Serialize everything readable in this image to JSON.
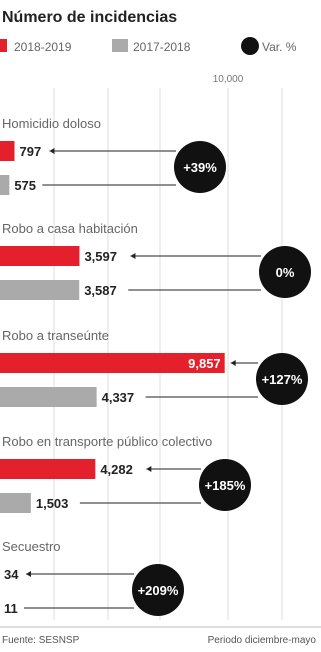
{
  "chart_data": {
    "type": "bar",
    "title": "Número de incidencias",
    "legend": [
      {
        "name": "2018-2019",
        "color": "#e3202b",
        "shape": "square"
      },
      {
        "name": "2017-2018",
        "color": "#aaaaaa",
        "shape": "square"
      },
      {
        "name": "Var. %",
        "color": "#111111",
        "shape": "circle"
      }
    ],
    "axis_tick_label": "10,000",
    "axis_tick_value": 10000,
    "categories": [
      {
        "label": "Homicidio doloso",
        "v2019": 797,
        "v2018": 575,
        "v2019_label": "797",
        "v2018_label": "575",
        "var": "+39%"
      },
      {
        "label": "Robo a casa habitación",
        "v2019": 3597,
        "v2018": 3587,
        "v2019_label": "3,597",
        "v2018_label": "3,587",
        "var": "0%"
      },
      {
        "label": "Robo a transeúnte",
        "v2019": 9857,
        "v2018": 4337,
        "v2019_label": "9,857",
        "v2018_label": "4,337",
        "var": "+127%"
      },
      {
        "label": "Robo en transporte público colectivo",
        "v2019": 4282,
        "v2018": 1503,
        "v2019_label": "4,282",
        "v2018_label": "1,503",
        "var": "+185%"
      },
      {
        "label": "Secuestro",
        "v2019": 34,
        "v2018": 11,
        "v2019_label": "34",
        "v2018_label": "11",
        "var": "+209%"
      }
    ],
    "colors": {
      "current": "#e3202b",
      "previous": "#aaaaaa",
      "circle": "#111111"
    }
  },
  "footer": {
    "source": "Fuente: SESNSP",
    "period": "Periodo diciembre-mayo"
  }
}
